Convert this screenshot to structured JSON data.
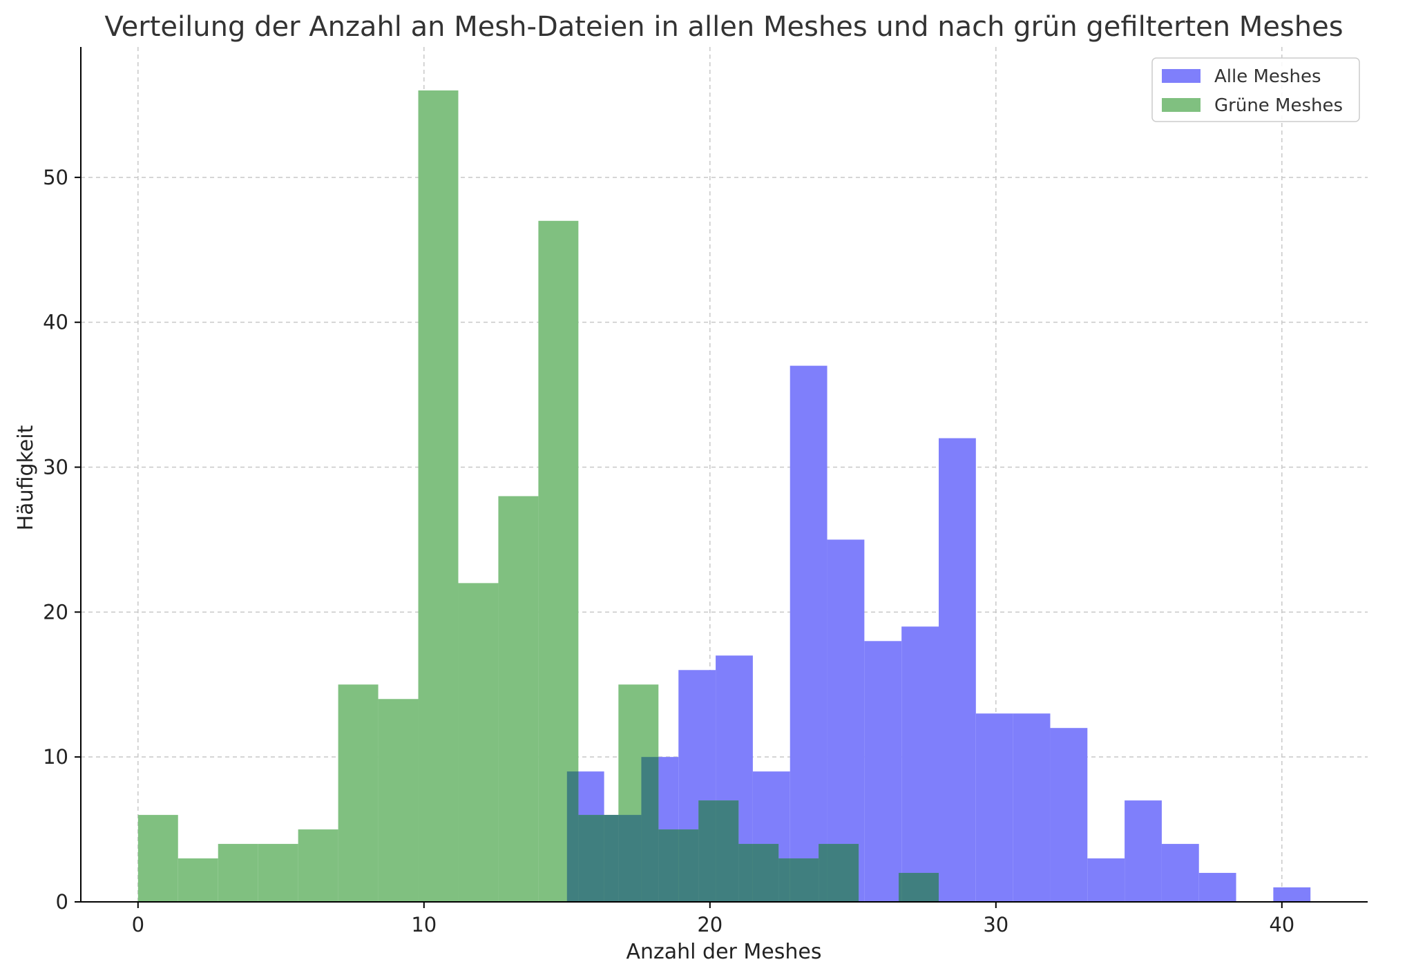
{
  "chart_data": {
    "type": "bar",
    "title": "Verteilung der Anzahl an Mesh-Dateien in allen Meshes und nach grün gefilterten Meshes",
    "xlabel": "Anzahl der Meshes",
    "ylabel": "Häufigkeit",
    "xlim": [
      -2,
      43
    ],
    "ylim": [
      0,
      59
    ],
    "xticks": [
      0,
      10,
      20,
      30,
      40
    ],
    "yticks": [
      0,
      10,
      20,
      30,
      40,
      50
    ],
    "grid": true,
    "legend_position": "top-right",
    "series": [
      {
        "name": "Alle Meshes",
        "color": "#7f7ffb",
        "bin_edges": [
          15,
          16.3,
          17.6,
          18.9,
          20.2,
          21.5,
          22.8,
          24.1,
          25.4,
          26.7,
          28.0,
          29.3,
          30.6,
          31.9,
          33.2,
          34.5,
          35.8,
          37.1,
          38.4,
          39.7,
          41.0
        ],
        "values": [
          9,
          6,
          10,
          16,
          17,
          9,
          37,
          25,
          18,
          19,
          32,
          13,
          13,
          12,
          3,
          7,
          4,
          2,
          0,
          1
        ]
      },
      {
        "name": "Grüne Meshes",
        "color": "#80c080",
        "bin_edges": [
          0,
          1.4,
          2.8,
          4.2,
          5.6,
          7.0,
          8.4,
          9.8,
          11.2,
          12.6,
          14.0,
          15.4,
          16.8,
          18.2,
          19.6,
          21.0,
          22.4,
          23.8,
          25.2,
          26.6,
          28.0
        ],
        "values": [
          6,
          3,
          4,
          4,
          5,
          15,
          14,
          56,
          22,
          28,
          47,
          6,
          15,
          5,
          7,
          4,
          3,
          4,
          0,
          2
        ]
      }
    ],
    "legend": [
      "Alle Meshes",
      "Grüne Meshes"
    ]
  }
}
